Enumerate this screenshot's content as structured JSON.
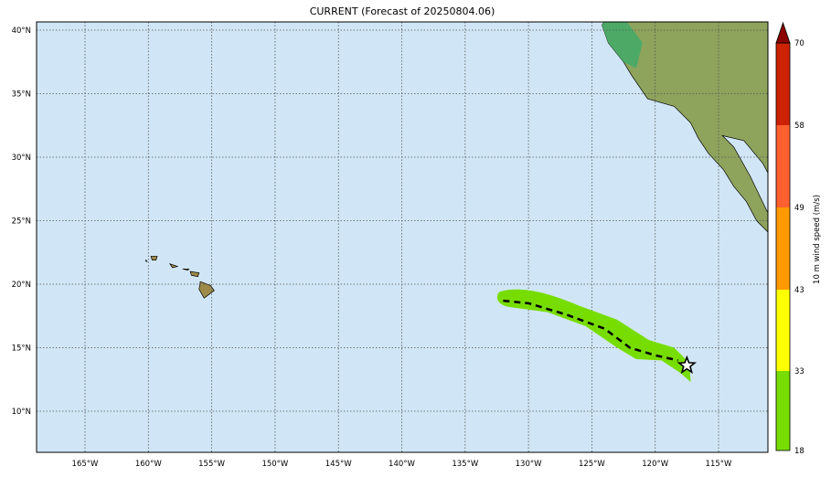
{
  "title": "CURRENT (Forecast of 20250804.06)",
  "map": {
    "ocean_color": "#d0e6f6",
    "swath_color": "#77dd00",
    "lon_ticks": [
      "165°W",
      "160°W",
      "155°W",
      "150°W",
      "145°W",
      "140°W",
      "135°W",
      "130°W",
      "125°W",
      "120°W",
      "115°W"
    ],
    "lat_ticks": [
      "40°N",
      "35°N",
      "30°N",
      "25°N",
      "20°N",
      "15°N",
      "10°N"
    ],
    "lon_values": [
      -165,
      -160,
      -155,
      -150,
      -145,
      -140,
      -135,
      -130,
      -125,
      -120,
      -115
    ],
    "lat_values": [
      40,
      35,
      30,
      25,
      20,
      15,
      10
    ],
    "track": [
      [
        -132,
        18.7
      ],
      [
        -130,
        18.5
      ],
      [
        -127,
        17.6
      ],
      [
        -124,
        16.5
      ],
      [
        -122,
        15
      ],
      [
        -120,
        14.4
      ],
      [
        -118.2,
        14
      ]
    ],
    "current_position": [
      -117.5,
      13.6
    ],
    "current_position_icon": "star-icon"
  },
  "colorbar": {
    "label": "10 m wind speed (m/s)",
    "levels": [
      "18",
      "33",
      "43",
      "49",
      "58",
      "70"
    ],
    "colors": [
      "#77dd00",
      "#ffff00",
      "#ff9900",
      "#ff6030",
      "#cc2200"
    ],
    "extend_color": "#8b0000"
  }
}
